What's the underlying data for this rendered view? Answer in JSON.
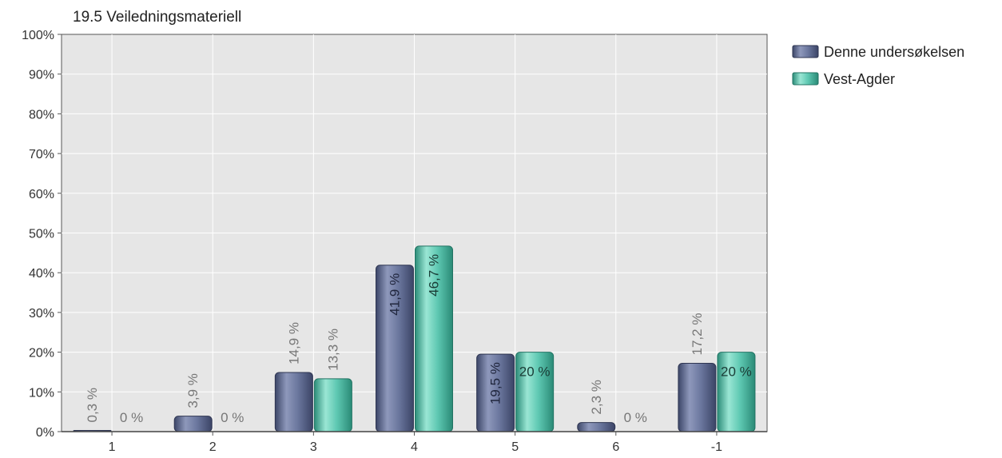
{
  "chart_data": {
    "type": "bar",
    "title": "19.5 Veiledningsmateriell",
    "categories": [
      "1",
      "2",
      "3",
      "4",
      "5",
      "6",
      "-1"
    ],
    "series": [
      {
        "name": "Denne undersøkelsen",
        "values": [
          0.3,
          3.9,
          14.9,
          41.9,
          19.5,
          2.3,
          17.2
        ],
        "labels": [
          "0,3 %",
          "3,9 %",
          "14,9 %",
          "41,9 %",
          "19,5 %",
          "2,3 %",
          "17,2 %"
        ],
        "color": "#6b779e"
      },
      {
        "name": "Vest-Agder",
        "values": [
          0,
          0,
          13.3,
          46.7,
          20,
          0,
          20
        ],
        "labels": [
          "0 %",
          "0 %",
          "13,3 %",
          "46,7 %",
          "20 %",
          "0 %",
          "20 %"
        ],
        "color": "#5ec8b2"
      }
    ],
    "ylim": [
      0,
      100
    ],
    "yticks": [
      0,
      10,
      20,
      30,
      40,
      50,
      60,
      70,
      80,
      90,
      100
    ],
    "ytick_labels": [
      "0%",
      "10%",
      "20%",
      "30%",
      "40%",
      "50%",
      "60%",
      "70%",
      "80%",
      "90%",
      "100%"
    ],
    "grid": true,
    "legend_position": "top-right",
    "plot_background": "#e6e6e6"
  }
}
